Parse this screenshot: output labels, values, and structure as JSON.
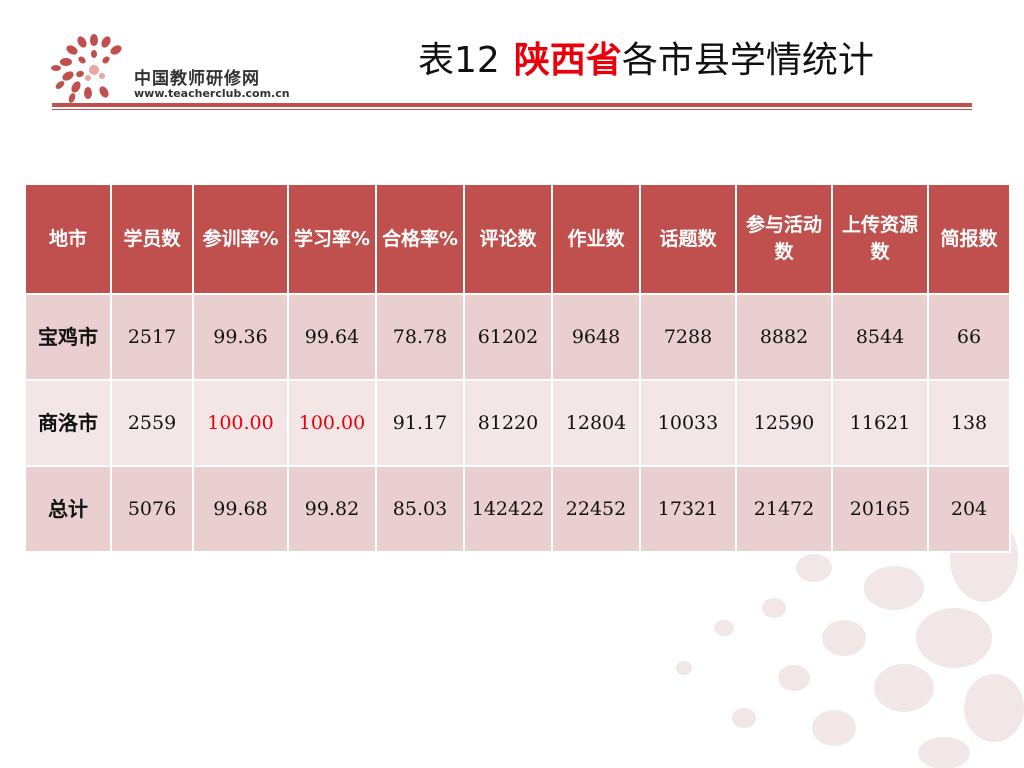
{
  "logo": {
    "name": "中国教师研修网",
    "url": "www.teacherclub.com.cn"
  },
  "title": {
    "prefix": "表12",
    "highlight": "陕西省",
    "rest": "各市县学情统计"
  },
  "colors": {
    "accent": "#c0504d",
    "highlight_text": "#e8000b",
    "row_dark": "#e9cfcf",
    "row_light": "#f3e6e6"
  },
  "table": {
    "headers": [
      "地市",
      "学员数",
      "参训率%",
      "学习率%",
      "合格率%",
      "评论数",
      "作业数",
      "话题数",
      "参与活动数",
      "上传资源数",
      "简报数"
    ],
    "rows": [
      {
        "cells": [
          "宝鸡市",
          "2517",
          "99.36",
          "99.64",
          "78.78",
          "61202",
          "9648",
          "7288",
          "8882",
          "8544",
          "66"
        ]
      },
      {
        "cells": [
          "商洛市",
          "2559",
          "100.00",
          "100.00",
          "91.17",
          "81220",
          "12804",
          "10033",
          "12590",
          "11621",
          "138"
        ]
      },
      {
        "cells": [
          "总计",
          "5076",
          "99.68",
          "99.82",
          "85.03",
          "142422",
          "22452",
          "17321",
          "21472",
          "20165",
          "204"
        ]
      }
    ]
  }
}
